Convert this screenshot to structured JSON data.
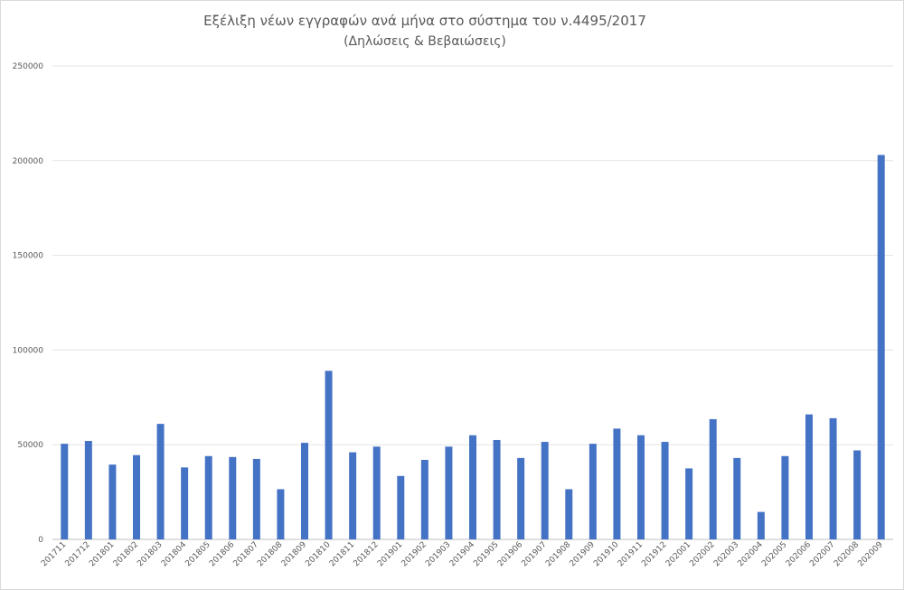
{
  "chart_data": {
    "type": "bar",
    "title": "Εξέλιξη νέων εγγραφών ανά μήνα στο σύστημα του ν.4495/2017",
    "subtitle": "(Δηλώσεις & Βεβαιώσεις)",
    "xlabel": "",
    "ylabel": "",
    "ylim": [
      0,
      250000
    ],
    "yticks": [
      0,
      50000,
      100000,
      150000,
      200000,
      250000
    ],
    "grid": true,
    "legend": "none",
    "bar_color": "#4472c4",
    "categories": [
      "201711",
      "201712",
      "201801",
      "201802",
      "201803",
      "201804",
      "201805",
      "201806",
      "201807",
      "201808",
      "201809",
      "201810",
      "201811",
      "201812",
      "201901",
      "201902",
      "201903",
      "201904",
      "201905",
      "201906",
      "201907",
      "201908",
      "201909",
      "201910",
      "201911",
      "201912",
      "202001",
      "202002",
      "202003",
      "202004",
      "202005",
      "202006",
      "202007",
      "202008",
      "202009"
    ],
    "values": [
      50500,
      52000,
      39500,
      44500,
      61000,
      38000,
      44000,
      43500,
      42500,
      26500,
      51000,
      89000,
      46000,
      49000,
      33500,
      42000,
      49000,
      55000,
      52500,
      43000,
      51500,
      26500,
      50500,
      58500,
      55000,
      51500,
      37500,
      63500,
      43000,
      14500,
      44000,
      66000,
      64000,
      47000,
      203000
    ]
  }
}
